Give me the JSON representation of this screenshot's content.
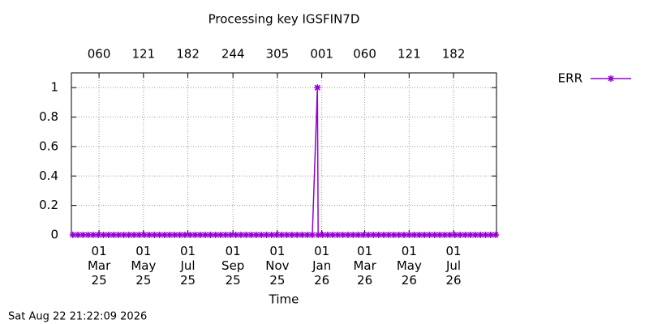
{
  "chart_data": {
    "type": "line",
    "title": "Processing key IGSFIN7D",
    "x_label": "Time",
    "footer": "Sat Aug 22 21:22:09 2026",
    "x": [
      "2025-01-24",
      "2025-01-31",
      "2025-02-07",
      "2025-02-14",
      "2025-02-21",
      "2025-02-28",
      "2025-03-07",
      "2025-03-14",
      "2025-03-21",
      "2025-03-28",
      "2025-04-04",
      "2025-04-11",
      "2025-04-18",
      "2025-04-25",
      "2025-05-02",
      "2025-05-09",
      "2025-05-16",
      "2025-05-23",
      "2025-05-30",
      "2025-06-06",
      "2025-06-13",
      "2025-06-20",
      "2025-06-27",
      "2025-07-04",
      "2025-07-11",
      "2025-07-18",
      "2025-07-25",
      "2025-08-01",
      "2025-08-08",
      "2025-08-15",
      "2025-08-22",
      "2025-08-29",
      "2025-09-05",
      "2025-09-12",
      "2025-09-19",
      "2025-09-26",
      "2025-10-03",
      "2025-10-10",
      "2025-10-17",
      "2025-10-24",
      "2025-10-31",
      "2025-11-07",
      "2025-11-14",
      "2025-11-21",
      "2025-11-28",
      "2025-12-05",
      "2025-12-12",
      "2025-12-19",
      "2025-12-26",
      "2025-12-27",
      "2026-01-02",
      "2026-01-09",
      "2026-01-16",
      "2026-01-23",
      "2026-01-30",
      "2026-02-06",
      "2026-02-13",
      "2026-02-20",
      "2026-02-27",
      "2026-03-06",
      "2026-03-13",
      "2026-03-20",
      "2026-03-27",
      "2026-04-03",
      "2026-04-10",
      "2026-04-17",
      "2026-04-24",
      "2026-05-01",
      "2026-05-08",
      "2026-05-15",
      "2026-05-22",
      "2026-05-29",
      "2026-06-05",
      "2026-06-12",
      "2026-06-19",
      "2026-06-26",
      "2026-07-03",
      "2026-07-10",
      "2026-07-17",
      "2026-07-24",
      "2026-07-31",
      "2026-08-07",
      "2026-08-14",
      "2026-08-21",
      "2026-08-28"
    ],
    "series": [
      {
        "name": "ERR",
        "color": "#9400d3",
        "values": [
          0,
          0,
          0,
          0,
          0,
          0,
          0,
          0,
          0,
          0,
          0,
          0,
          0,
          0,
          0,
          0,
          0,
          0,
          0,
          0,
          0,
          0,
          0,
          0,
          0,
          0,
          0,
          0,
          0,
          0,
          0,
          0,
          0,
          0,
          0,
          0,
          0,
          0,
          0,
          0,
          0,
          0,
          0,
          0,
          0,
          0,
          0,
          0,
          1,
          0,
          0,
          0,
          0,
          0,
          0,
          0,
          0,
          0,
          0,
          0,
          0,
          0,
          0,
          0,
          0,
          0,
          0,
          0,
          0,
          0,
          0,
          0,
          0,
          0,
          0,
          0,
          0,
          0,
          0,
          0,
          0,
          0,
          0,
          0,
          0
        ]
      }
    ],
    "xlim": [
      "2025-01-22",
      "2026-08-29"
    ],
    "xticks": [
      {
        "value": "2025-03-01",
        "label": "01\nMar\n25"
      },
      {
        "value": "2025-05-01",
        "label": "01\nMay\n25"
      },
      {
        "value": "2025-07-01",
        "label": "01\nJul\n25"
      },
      {
        "value": "2025-09-01",
        "label": "01\nSep\n25"
      },
      {
        "value": "2025-11-01",
        "label": "01\nNov\n25"
      },
      {
        "value": "2026-01-01",
        "label": "01\nJan\n26"
      },
      {
        "value": "2026-03-01",
        "label": "01\nMar\n26"
      },
      {
        "value": "2026-05-01",
        "label": "01\nMay\n26"
      },
      {
        "value": "2026-07-01",
        "label": "01\nJul\n26"
      }
    ],
    "x2ticks": [
      {
        "value": "2025-03-01",
        "label": "060"
      },
      {
        "value": "2025-05-01",
        "label": "121"
      },
      {
        "value": "2025-07-01",
        "label": "182"
      },
      {
        "value": "2025-09-01",
        "label": "244"
      },
      {
        "value": "2025-11-01",
        "label": "305"
      },
      {
        "value": "2026-01-01",
        "label": "001"
      },
      {
        "value": "2026-03-01",
        "label": "060"
      },
      {
        "value": "2026-05-01",
        "label": "121"
      },
      {
        "value": "2026-07-01",
        "label": "182"
      }
    ],
    "ylim": [
      0,
      1.1
    ],
    "yticks": [
      0,
      0.2,
      0.4,
      0.6,
      0.8,
      1
    ],
    "grid": true,
    "legend": "right"
  }
}
